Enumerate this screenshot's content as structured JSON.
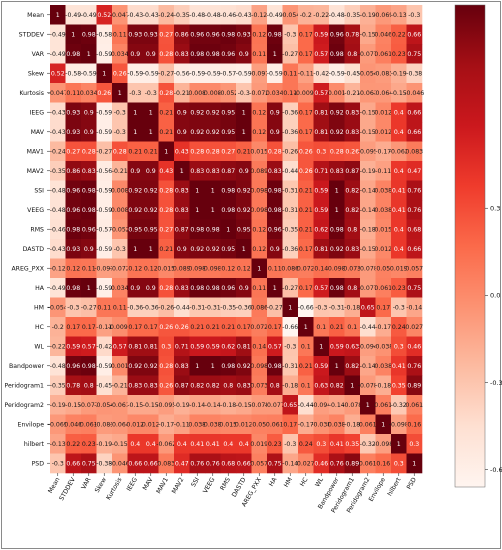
{
  "chart_data": {
    "type": "heatmap",
    "title": "",
    "xlabel": "",
    "ylabel": "",
    "rows": [
      "Mean",
      "STDDEV",
      "VAR",
      "Skew",
      "Kurtosis",
      "IEEG",
      "MAV",
      "MAV1",
      "MAV2",
      "SSI",
      "VEEG",
      "RMS",
      "DASTD",
      "AREG_PXX",
      "HA",
      "HM",
      "HC",
      "WL",
      "Bandpower",
      "Peridogram1",
      "Peridogram2",
      "Envilope",
      "hilbert",
      "PSD"
    ],
    "col_labels": [
      "Mean",
      "STDDEV",
      "VAR",
      "Skew",
      "Kurtosis",
      "IEEG",
      "MAV",
      "MAV1",
      "MAV2",
      "SSI",
      "VEEG",
      "RMS",
      "DASTD",
      "AREG_PXX",
      "HA",
      "HM",
      "HC",
      "WL",
      "Bandpower",
      "Peridogram1",
      "Peridogram2",
      "Envilope",
      "hilbert",
      "PSD"
    ],
    "matrix": [
      [
        1,
        -0.49,
        -0.49,
        0.52,
        -0.047,
        -0.43,
        -0.43,
        -0.24,
        -0.35,
        -0.48,
        -0.48,
        -0.46,
        -0.43,
        -0.12,
        -0.49,
        -0.054,
        -0.2,
        -0.22,
        -0.48,
        -0.35,
        -0.19,
        -0.069,
        -0.13,
        -0.3
      ],
      [
        -0.49,
        1,
        0.98,
        -0.58,
        0.11,
        0.93,
        0.93,
        0.27,
        0.86,
        0.96,
        0.96,
        0.98,
        0.93,
        0.12,
        0.98,
        -0.3,
        0.17,
        0.59,
        0.96,
        0.78,
        -0.15,
        0.046,
        0.22,
        0.66
      ],
      [
        -0.49,
        0.98,
        1,
        -0.59,
        0.034,
        0.9,
        0.9,
        0.28,
        0.83,
        0.98,
        0.98,
        0.96,
        0.9,
        0.11,
        1,
        -0.27,
        0.17,
        0.57,
        0.98,
        0.8,
        -0.077,
        0.061,
        0.23,
        0.75
      ],
      [
        0.52,
        -0.58,
        -0.59,
        1,
        0.26,
        -0.59,
        -0.59,
        -0.27,
        -0.56,
        -0.59,
        -0.59,
        -0.57,
        -0.59,
        -0.097,
        -0.59,
        0.11,
        -0.11,
        -0.42,
        -0.59,
        -0.45,
        -0.054,
        -0.083,
        -0.19,
        -0.38
      ],
      [
        -0.047,
        0.11,
        0.034,
        0.26,
        1,
        -0.3,
        -0.3,
        0.28,
        -0.21,
        0.008,
        0.008,
        -0.052,
        -0.3,
        -0.072,
        0.034,
        0.11,
        -0.0091,
        0.57,
        0.001,
        -0.21,
        -0.061,
        -0.064,
        -0.15,
        -0.046
      ],
      [
        -0.43,
        0.93,
        0.9,
        -0.59,
        -0.3,
        1,
        1,
        0.21,
        0.9,
        0.92,
        0.92,
        0.95,
        1,
        0.12,
        0.9,
        -0.36,
        0.17,
        0.81,
        0.92,
        0.83,
        -0.15,
        0.012,
        0.4,
        0.66
      ],
      [
        -0.43,
        0.93,
        0.9,
        -0.59,
        -0.3,
        1,
        1,
        0.21,
        0.9,
        0.92,
        0.92,
        0.95,
        1,
        0.12,
        0.9,
        -0.36,
        0.17,
        0.81,
        0.92,
        0.83,
        -0.15,
        0.012,
        0.4,
        0.66
      ],
      [
        -0.24,
        0.27,
        0.28,
        -0.27,
        0.28,
        0.21,
        0.21,
        1,
        0.43,
        0.28,
        0.28,
        0.27,
        0.21,
        0.015,
        0.28,
        -0.26,
        0.26,
        0.3,
        0.28,
        0.26,
        -0.095,
        -0.17,
        -0.062,
        0.083
      ],
      [
        -0.35,
        0.86,
        0.83,
        -0.56,
        -0.21,
        0.9,
        0.9,
        0.43,
        1,
        0.83,
        0.83,
        0.87,
        0.9,
        0.089,
        0.83,
        -0.44,
        0.26,
        0.71,
        0.83,
        0.87,
        -0.19,
        -0.11,
        0.4,
        0.47
      ],
      [
        -0.48,
        0.96,
        0.98,
        -0.59,
        0.008,
        0.92,
        0.92,
        0.28,
        0.83,
        1,
        1,
        0.98,
        0.92,
        0.098,
        0.98,
        -0.31,
        0.21,
        0.59,
        1,
        0.82,
        -0.14,
        0.038,
        0.41,
        0.76
      ],
      [
        -0.48,
        0.96,
        0.98,
        -0.59,
        0.008,
        0.92,
        0.92,
        0.28,
        0.83,
        1,
        1,
        0.98,
        0.92,
        0.098,
        0.98,
        -0.31,
        0.21,
        0.59,
        1,
        0.82,
        -0.14,
        0.038,
        0.41,
        0.76
      ],
      [
        -0.46,
        0.98,
        0.96,
        -0.57,
        -0.052,
        0.95,
        0.95,
        0.27,
        0.87,
        0.98,
        0.98,
        1,
        0.95,
        0.12,
        0.96,
        -0.35,
        0.21,
        0.62,
        0.98,
        0.8,
        -0.18,
        0.015,
        0.4,
        0.68
      ],
      [
        -0.43,
        0.93,
        0.9,
        -0.59,
        -0.3,
        1,
        1,
        0.21,
        0.9,
        0.92,
        0.92,
        0.95,
        1,
        0.12,
        0.9,
        -0.36,
        0.17,
        0.81,
        0.92,
        0.83,
        -0.15,
        0.012,
        0.4,
        0.66
      ],
      [
        -0.12,
        0.12,
        0.11,
        -0.097,
        -0.072,
        0.12,
        0.12,
        0.015,
        0.089,
        0.098,
        0.098,
        0.12,
        0.12,
        1,
        0.11,
        0.086,
        0.072,
        0.14,
        0.098,
        0.073,
        -0.078,
        0.05,
        0.019,
        0.057
      ],
      [
        -0.49,
        0.98,
        1,
        -0.59,
        0.034,
        0.9,
        0.9,
        0.28,
        0.83,
        0.98,
        0.98,
        0.96,
        0.9,
        0.11,
        1,
        -0.27,
        0.17,
        0.57,
        0.98,
        0.8,
        -0.077,
        0.061,
        0.23,
        0.75
      ],
      [
        -0.054,
        -0.3,
        -0.27,
        0.11,
        0.11,
        -0.36,
        -0.36,
        -0.26,
        -0.44,
        -0.31,
        -0.31,
        -0.35,
        -0.36,
        0.086,
        -0.27,
        1,
        -0.66,
        -0.3,
        -0.31,
        -0.18,
        0.65,
        0.17,
        -0.3,
        -0.14
      ],
      [
        -0.2,
        0.17,
        0.17,
        -0.11,
        -0.0091,
        0.17,
        0.17,
        0.26,
        0.26,
        0.21,
        0.21,
        0.21,
        0.17,
        0.072,
        0.17,
        -0.66,
        1,
        0.1,
        0.21,
        0.1,
        -0.44,
        -0.17,
        0.24,
        0.027
      ],
      [
        -0.22,
        0.59,
        0.57,
        -0.42,
        0.57,
        0.81,
        0.81,
        0.3,
        0.71,
        0.59,
        0.59,
        0.62,
        0.81,
        0.14,
        0.57,
        -0.3,
        0.1,
        1,
        0.59,
        0.63,
        -0.094,
        -0.038,
        0.3,
        0.46
      ],
      [
        -0.48,
        0.96,
        0.98,
        -0.59,
        0.001,
        0.92,
        0.92,
        0.28,
        0.83,
        1,
        1,
        0.98,
        0.92,
        0.098,
        0.98,
        -0.31,
        0.21,
        0.59,
        1,
        0.82,
        -0.14,
        0.038,
        0.41,
        0.76
      ],
      [
        -0.35,
        0.78,
        0.8,
        -0.45,
        -0.21,
        0.83,
        0.83,
        0.26,
        0.87,
        0.82,
        0.82,
        0.8,
        0.83,
        0.073,
        0.8,
        -0.18,
        0.1,
        0.63,
        0.82,
        1,
        -0.078,
        -0.18,
        0.35,
        0.89
      ],
      [
        -0.19,
        -0.15,
        -0.077,
        -0.054,
        -0.061,
        -0.15,
        -0.15,
        -0.095,
        -0.19,
        -0.14,
        -0.14,
        -0.18,
        -0.15,
        -0.078,
        -0.077,
        0.65,
        -0.44,
        -0.094,
        -0.14,
        -0.078,
        1,
        0.061,
        -0.32,
        0.061
      ],
      [
        -0.069,
        0.046,
        0.061,
        -0.083,
        -0.064,
        0.012,
        0.012,
        -0.17,
        -0.11,
        0.038,
        0.038,
        0.015,
        0.012,
        0.05,
        0.061,
        0.17,
        -0.17,
        -0.038,
        0.038,
        -0.18,
        0.061,
        1,
        -0.098,
        0.16
      ],
      [
        -0.13,
        0.22,
        0.23,
        -0.19,
        -0.15,
        0.4,
        0.4,
        -0.062,
        0.4,
        0.41,
        0.41,
        0.4,
        0.4,
        0.019,
        0.23,
        -0.3,
        0.24,
        0.3,
        0.41,
        0.35,
        -0.32,
        -0.098,
        1,
        0.3
      ],
      [
        -0.3,
        0.66,
        0.75,
        -0.38,
        -0.046,
        0.66,
        0.66,
        0.083,
        0.47,
        0.76,
        0.76,
        0.68,
        0.66,
        0.057,
        0.75,
        -0.14,
        0.027,
        0.46,
        0.76,
        0.89,
        0.061,
        0.16,
        0.3,
        1
      ]
    ],
    "cell_labels": [
      [
        "1",
        "-0.49",
        "-0.49",
        "0.52",
        "-0.047",
        "-0.43",
        "-0.43",
        "-0.24",
        "-0.35",
        "-0.48",
        "-0.48",
        "-0.46",
        "-0.43",
        "-0.12",
        "-0.49",
        "-0.054",
        "-0.2",
        "-0.22",
        "-0.48",
        "-0.35",
        "-0.19",
        "-0.069",
        "-0.13",
        "-0.3"
      ],
      [
        "-0.49",
        "1",
        "0.98",
        "-0.58",
        "0.11",
        "0.93",
        "0.93",
        "0.27",
        "0.86",
        "0.96",
        "0.96",
        "0.98",
        "0.93",
        "0.12",
        "0.98",
        "-0.3",
        "0.17",
        "0.59",
        "0.96",
        "0.78",
        "-0.15",
        "0.046",
        "0.22",
        "0.66"
      ],
      [
        "-0.49",
        "0.98",
        "1",
        "-0.59",
        "0.034",
        "0.9",
        "0.9",
        "0.28",
        "0.83",
        "0.98",
        "0.98",
        "0.96",
        "0.9",
        "0.11",
        "1",
        "-0.27",
        "0.17",
        "0.57",
        "0.98",
        "0.8",
        "-0.077",
        "0.061",
        "0.23",
        "0.75"
      ],
      [
        "0.52",
        "-0.58",
        "-0.59",
        "1",
        "0.26",
        "-0.59",
        "-0.59",
        "-0.27",
        "-0.56",
        "-0.59",
        "-0.59",
        "-0.57",
        "-0.59",
        "-0.097",
        "-0.59",
        "0.11",
        "-0.11",
        "-0.42",
        "-0.59",
        "-0.45",
        "-0.054",
        "-0.083",
        "-0.19",
        "-0.38"
      ],
      [
        "-0.047",
        "0.11",
        "0.034",
        "0.26",
        "1",
        "-0.3",
        "-0.3",
        "0.28",
        "-0.21",
        "0.008",
        "0.008",
        "-0.052",
        "-0.3",
        "-0.072",
        "0.034",
        "0.11",
        "-0.0091",
        "0.57",
        "0.001",
        "-0.21",
        "-0.061",
        "-0.064",
        "-0.15",
        "-0.046"
      ],
      [
        "-0.43",
        "0.93",
        "0.9",
        "-0.59",
        "-0.3",
        "1",
        "1",
        "0.21",
        "0.9",
        "0.92",
        "0.92",
        "0.95",
        "1",
        "0.12",
        "0.9",
        "-0.36",
        "0.17",
        "0.81",
        "0.92",
        "0.83",
        "-0.15",
        "0.012",
        "0.4",
        "0.66"
      ],
      [
        "-0.43",
        "0.93",
        "0.9",
        "-0.59",
        "-0.3",
        "1",
        "1",
        "0.21",
        "0.9",
        "0.92",
        "0.92",
        "0.95",
        "1",
        "0.12",
        "0.9",
        "-0.36",
        "0.17",
        "0.81",
        "0.92",
        "0.83",
        "-0.15",
        "0.012",
        "0.4",
        "0.66"
      ],
      [
        "-0.24",
        "0.27",
        "0.28",
        "-0.27",
        "0.28",
        "0.21",
        "0.21",
        "1",
        "0.43",
        "0.28",
        "0.28",
        "0.27",
        "0.21",
        "0.015",
        "0.28",
        "-0.26",
        "0.26",
        "0.3",
        "0.28",
        "0.26",
        "-0.095",
        "-0.17",
        "-0.062",
        "0.083"
      ],
      [
        "-0.35",
        "0.86",
        "0.83",
        "-0.56",
        "-0.21",
        "0.9",
        "0.9",
        "0.43",
        "1",
        "0.83",
        "0.83",
        "0.87",
        "0.9",
        "0.089",
        "0.83",
        "-0.44",
        "0.26",
        "0.71",
        "0.83",
        "0.87",
        "-0.19",
        "-0.11",
        "0.4",
        "0.47"
      ],
      [
        "-0.48",
        "0.96",
        "0.98",
        "-0.59",
        "0.008",
        "0.92",
        "0.92",
        "0.28",
        "0.83",
        "1",
        "1",
        "0.98",
        "0.92",
        "0.098",
        "0.98",
        "-0.31",
        "0.21",
        "0.59",
        "1",
        "0.82",
        "-0.14",
        "0.038",
        "0.41",
        "0.76"
      ],
      [
        "-0.48",
        "0.96",
        "0.98",
        "-0.59",
        "0.008",
        "0.92",
        "0.92",
        "0.28",
        "0.83",
        "1",
        "1",
        "0.98",
        "0.92",
        "0.098",
        "0.98",
        "-0.31",
        "0.21",
        "0.59",
        "1",
        "0.82",
        "-0.14",
        "0.038",
        "0.41",
        "0.76"
      ],
      [
        "-0.46",
        "0.98",
        "0.96",
        "-0.57",
        "-0.052",
        "0.95",
        "0.95",
        "0.27",
        "0.87",
        "0.98",
        "0.98",
        "1",
        "0.95",
        "0.12",
        "0.96",
        "-0.35",
        "0.21",
        "0.62",
        "0.98",
        "0.8",
        "-0.18",
        "0.015",
        "0.4",
        "0.68"
      ],
      [
        "-0.43",
        "0.93",
        "0.9",
        "-0.59",
        "-0.3",
        "1",
        "1",
        "0.21",
        "0.9",
        "0.92",
        "0.92",
        "0.95",
        "1",
        "0.12",
        "0.9",
        "-0.36",
        "0.17",
        "0.81",
        "0.92",
        "0.83",
        "-0.15",
        "0.012",
        "0.4",
        "0.66"
      ],
      [
        "-0.12",
        "0.12",
        "0.11",
        "-0.097",
        "-0.072",
        "0.12",
        "0.12",
        "0.015",
        "0.089",
        "0.098",
        "0.098",
        "0.12",
        "0.12",
        "1",
        "0.11",
        "0.086",
        "0.072",
        "0.14",
        "0.098",
        "0.073",
        "-0.078",
        "0.05",
        "0.019",
        "0.057"
      ],
      [
        "-0.49",
        "0.98",
        "1",
        "-0.59",
        "0.034",
        "0.9",
        "0.9",
        "0.28",
        "0.83",
        "0.98",
        "0.98",
        "0.96",
        "0.9",
        "0.11",
        "1",
        "-0.27",
        "0.17",
        "0.57",
        "0.98",
        "0.8",
        "-0.077",
        "0.061",
        "0.23",
        "0.75"
      ],
      [
        "-0.054",
        "-0.3",
        "-0.27",
        "0.11",
        "0.11",
        "-0.36",
        "-0.36",
        "-0.26",
        "-0.44",
        "-0.31",
        "-0.31",
        "-0.35",
        "-0.36",
        "0.086",
        "-0.27",
        "1",
        "-0.66",
        "-0.3",
        "-0.31",
        "-0.18",
        "0.65",
        "0.17",
        "-0.3",
        "-0.14"
      ],
      [
        "-0.2",
        "0.17",
        "0.17",
        "-0.11",
        "-0.0091",
        "0.17",
        "0.17",
        "0.26",
        "0.26",
        "0.21",
        "0.21",
        "0.21",
        "0.17",
        "0.072",
        "0.17",
        "-0.66",
        "1",
        "0.1",
        "0.21",
        "0.1",
        "-0.44",
        "-0.17",
        "0.24",
        "0.027"
      ],
      [
        "-0.22",
        "0.59",
        "0.57",
        "-0.42",
        "0.57",
        "0.81",
        "0.81",
        "0.3",
        "0.71",
        "0.59",
        "0.59",
        "0.62",
        "0.81",
        "0.14",
        "0.57",
        "-0.3",
        "0.1",
        "1",
        "0.59",
        "0.63",
        "-0.094",
        "-0.038",
        "0.3",
        "0.46"
      ],
      [
        "-0.48",
        "0.96",
        "0.98",
        "-0.59",
        "0.001",
        "0.92",
        "0.92",
        "0.28",
        "0.83",
        "1",
        "1",
        "0.98",
        "0.92",
        "0.098",
        "0.98",
        "-0.31",
        "0.21",
        "0.59",
        "1",
        "0.82",
        "-0.14",
        "0.038",
        "0.41",
        "0.76"
      ],
      [
        "-0.35",
        "0.78",
        "0.8",
        "-0.45",
        "-0.21",
        "0.83",
        "0.83",
        "0.26",
        "0.87",
        "0.82",
        "0.82",
        "0.8",
        "0.83",
        "0.073",
        "0.8",
        "-0.18",
        "0.1",
        "0.63",
        "0.82",
        "1",
        "-0.078",
        "-0.18",
        "0.35",
        "0.89"
      ],
      [
        "-0.19",
        "-0.15",
        "-0.077",
        "-0.054",
        "-0.061",
        "-0.15",
        "-0.15",
        "-0.095",
        "-0.19",
        "-0.14",
        "-0.14",
        "-0.18",
        "-0.15",
        "-0.078",
        "-0.077",
        "0.65",
        "-0.44",
        "-0.094",
        "-0.14",
        "-0.078",
        "1",
        "0.061",
        "-0.32",
        "0.061"
      ],
      [
        "-0.069",
        "0.046",
        "0.061",
        "-0.083",
        "-0.064",
        "0.012",
        "0.012",
        "-0.17",
        "-0.11",
        "0.038",
        "0.038",
        "0.015",
        "0.012",
        "0.05",
        "0.061",
        "0.17",
        "-0.17",
        "-0.038",
        "0.038",
        "-0.18",
        "0.061",
        "1",
        "-0.098",
        "0.16"
      ],
      [
        "-0.13",
        "0.22",
        "0.23",
        "-0.19",
        "-0.15",
        "0.4",
        "0.4",
        "-0.062",
        "0.4",
        "0.41",
        "0.41",
        "0.4",
        "0.4",
        "0.019",
        "0.23",
        "-0.3",
        "0.24",
        "0.3",
        "0.41",
        "0.35",
        "-0.32",
        "-0.098",
        "1",
        "0.3"
      ],
      [
        "-0.3",
        "0.66",
        "0.75",
        "-0.38",
        "-0.046",
        "0.66",
        "0.66",
        "0.083",
        "0.47",
        "0.76",
        "0.76",
        "0.68",
        "0.66",
        "0.057",
        "0.75",
        "-0.14",
        "0.027",
        "0.46",
        "0.76",
        "0.89",
        "0.061",
        "0.16",
        "0.3",
        "1"
      ]
    ],
    "value_range": [
      -0.66,
      1
    ],
    "colormap": "Reds",
    "colorbar": {
      "ticks": [
        0.3,
        0,
        -0.3,
        -0.6
      ],
      "tick_labels": [
        "0.3",
        "0.0",
        "-0.3",
        "-0.6"
      ]
    },
    "grid": false,
    "legend": "colorbar-right"
  },
  "colors": {
    "low": "#fff5f0",
    "high": "#67000d"
  }
}
